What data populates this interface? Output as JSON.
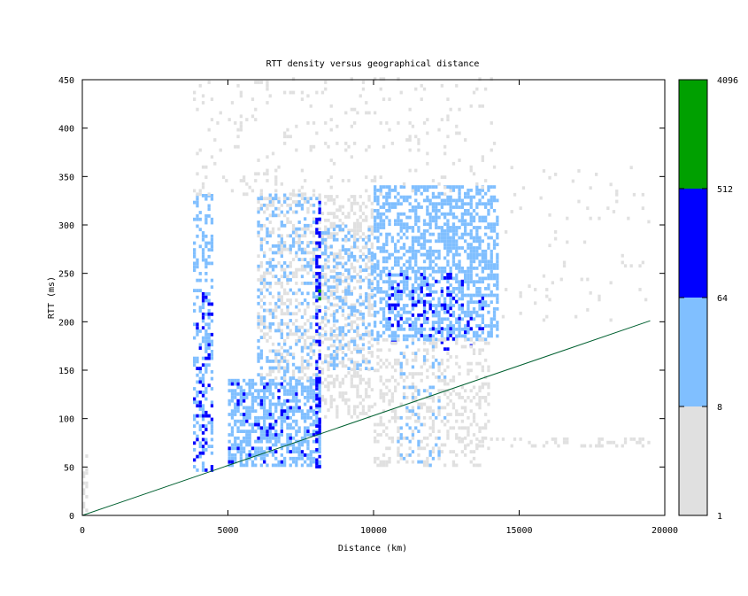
{
  "chart_data": {
    "type": "heatmap",
    "title": "RTT density versus geographical distance",
    "xlabel": "Distance (km)",
    "ylabel": "RTT (ms)",
    "xlim": [
      0,
      20000
    ],
    "ylim": [
      0,
      450
    ],
    "x_ticks": [
      "0",
      "5000",
      "10000",
      "15000",
      "20000"
    ],
    "y_ticks": [
      "0",
      "50",
      "100",
      "150",
      "200",
      "250",
      "300",
      "350",
      "400",
      "450"
    ],
    "colorbar": {
      "labels": [
        "1",
        "8",
        "64",
        "512",
        "4096"
      ],
      "colors": [
        "#e0e0e0",
        "#80bfff",
        "#0000ff",
        "#00a000"
      ]
    },
    "line": {
      "color": "#006030",
      "points": [
        [
          0,
          0
        ],
        [
          19500,
          201
        ]
      ]
    },
    "cells_grid": {
      "dx": 100,
      "dy": 3.5
    },
    "regions": [
      {
        "x": [
          3800,
          4500
        ],
        "y": [
          45,
          330
        ],
        "level": 2,
        "density": 0.35
      },
      {
        "x": [
          3800,
          4500
        ],
        "y": [
          45,
          230
        ],
        "level": 3,
        "density": 0.12
      },
      {
        "x": [
          5000,
          8200
        ],
        "y": [
          50,
          140
        ],
        "level": 2,
        "density": 0.6
      },
      {
        "x": [
          5000,
          8200
        ],
        "y": [
          50,
          140
        ],
        "level": 3,
        "density": 0.08
      },
      {
        "x": [
          6000,
          8200
        ],
        "y": [
          140,
          330
        ],
        "level": 1,
        "density": 0.3
      },
      {
        "x": [
          6000,
          8200
        ],
        "y": [
          140,
          330
        ],
        "level": 2,
        "density": 0.2
      },
      {
        "x": [
          8000,
          8200
        ],
        "y": [
          45,
          330
        ],
        "level": 3,
        "density": 0.4
      },
      {
        "x": [
          8200,
          10000
        ],
        "y": [
          100,
          330
        ],
        "level": 1,
        "density": 0.35
      },
      {
        "x": [
          8200,
          10000
        ],
        "y": [
          150,
          300
        ],
        "level": 2,
        "density": 0.25
      },
      {
        "x": [
          10000,
          14300
        ],
        "y": [
          180,
          340
        ],
        "level": 2,
        "density": 0.55
      },
      {
        "x": [
          10500,
          13800
        ],
        "y": [
          170,
          250
        ],
        "level": 3,
        "density": 0.12
      },
      {
        "x": [
          10000,
          14000
        ],
        "y": [
          50,
          180
        ],
        "level": 1,
        "density": 0.25
      },
      {
        "x": [
          10800,
          12500
        ],
        "y": [
          50,
          180
        ],
        "level": 2,
        "density": 0.12
      },
      {
        "x": [
          3800,
          14300
        ],
        "y": [
          330,
          450
        ],
        "level": 1,
        "density": 0.06
      },
      {
        "x": [
          14300,
          19500
        ],
        "y": [
          200,
          360
        ],
        "level": 1,
        "density": 0.03
      },
      {
        "x": [
          13000,
          19500
        ],
        "y": [
          70,
          80
        ],
        "level": 1,
        "density": 0.25
      },
      {
        "x": [
          0,
          200
        ],
        "y": [
          0,
          60
        ],
        "level": 1,
        "density": 0.3
      }
    ],
    "spots": [
      {
        "x": 8100,
        "y": 230,
        "level": 4
      },
      {
        "x": 8100,
        "y": 222,
        "level": 4
      }
    ]
  }
}
